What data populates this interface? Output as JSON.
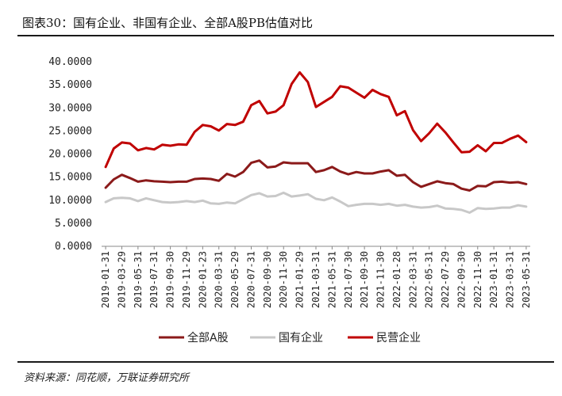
{
  "chart_data": {
    "type": "line",
    "title": "图表30：国有企业、非国有企业、全部A股PB估值对比",
    "xlabel": "",
    "ylabel": "",
    "ylim": [
      0,
      40
    ],
    "yticks": [
      "0.0000",
      "5.0000",
      "10.0000",
      "15.0000",
      "20.0000",
      "25.0000",
      "30.0000",
      "35.0000",
      "40.0000"
    ],
    "ytick_values": [
      0,
      5,
      10,
      15,
      20,
      25,
      30,
      35,
      40
    ],
    "x_tick_labels": [
      "2019-01-31",
      "2019-03-29",
      "2019-05-31",
      "2019-07-31",
      "2019-09-30",
      "2019-11-29",
      "2020-01-23",
      "2020-03-31",
      "2020-05-29",
      "2020-07-31",
      "2020-09-30",
      "2020-11-30",
      "2021-01-29",
      "2021-03-31",
      "2021-05-31",
      "2021-07-30",
      "2021-09-30",
      "2021-11-30",
      "2022-01-28",
      "2022-03-31",
      "2022-05-31",
      "2022-07-29",
      "2022-09-30",
      "2022-11-30",
      "2023-01-31",
      "2023-03-31",
      "2023-05-31"
    ],
    "x_count": 53,
    "grid": false,
    "legend_position": "bottom",
    "series": [
      {
        "name": "全部A股",
        "color": "#8b1a1a",
        "values": [
          12.7,
          14.5,
          15.5,
          14.8,
          14.0,
          14.3,
          14.1,
          14.0,
          13.9,
          14.0,
          14.0,
          14.6,
          14.7,
          14.6,
          14.2,
          15.7,
          15.1,
          16.1,
          18.1,
          18.6,
          17.1,
          17.3,
          18.2,
          18.0,
          18.0,
          18.0,
          16.1,
          16.5,
          17.2,
          16.2,
          15.6,
          16.1,
          15.8,
          15.8,
          16.2,
          16.5,
          15.3,
          15.5,
          13.9,
          12.9,
          13.5,
          14.1,
          13.7,
          13.5,
          12.5,
          12.1,
          13.1,
          13.0,
          13.9,
          14.0,
          13.8,
          13.9,
          13.5
        ]
      },
      {
        "name": "国有企业",
        "color": "#c8c8c8",
        "values": [
          9.6,
          10.4,
          10.5,
          10.4,
          9.8,
          10.4,
          10.0,
          9.6,
          9.5,
          9.6,
          9.8,
          9.6,
          9.9,
          9.3,
          9.2,
          9.5,
          9.3,
          10.2,
          11.1,
          11.5,
          10.8,
          10.9,
          11.6,
          10.8,
          11.0,
          11.3,
          10.3,
          10.0,
          10.6,
          9.7,
          8.7,
          9.0,
          9.2,
          9.2,
          9.0,
          9.2,
          8.8,
          9.0,
          8.6,
          8.4,
          8.5,
          8.8,
          8.2,
          8.1,
          7.9,
          7.3,
          8.3,
          8.1,
          8.2,
          8.4,
          8.4,
          8.9,
          8.6
        ]
      },
      {
        "name": "民营企业",
        "color": "#c00000",
        "values": [
          17.2,
          21.2,
          22.5,
          22.3,
          20.8,
          21.3,
          21.0,
          22.0,
          21.8,
          22.1,
          22.0,
          24.8,
          26.3,
          26.0,
          25.1,
          26.5,
          26.3,
          27.0,
          30.6,
          31.5,
          28.8,
          29.2,
          30.6,
          35.2,
          37.7,
          35.6,
          30.2,
          31.3,
          32.4,
          34.7,
          34.4,
          33.3,
          32.2,
          33.9,
          33.0,
          32.4,
          28.4,
          29.3,
          25.2,
          22.8,
          24.5,
          26.6,
          24.7,
          22.5,
          20.4,
          20.5,
          21.9,
          20.6,
          22.4,
          22.4,
          23.3,
          24.0,
          22.6
        ]
      }
    ]
  },
  "source": "资料来源：同花顺，万联证券研究所"
}
